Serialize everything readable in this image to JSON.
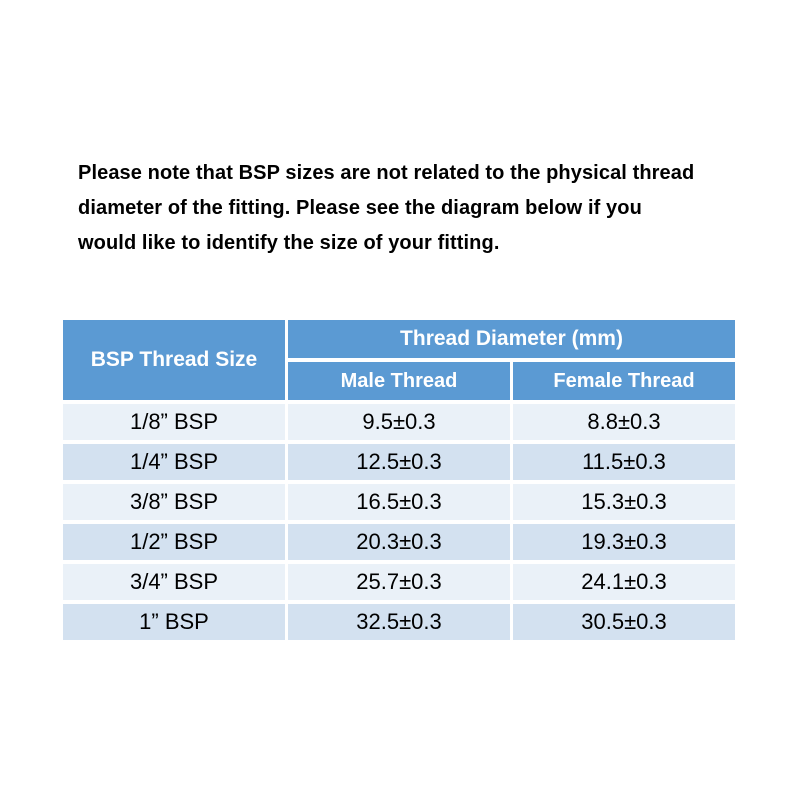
{
  "intro": {
    "lines": [
      "Please note that BSP sizes are not related to the physical thread",
      "diameter of the fitting. Please see the diagram below if you",
      "would like to identify the size of your fitting."
    ]
  },
  "table": {
    "size_column_header": "BSP Thread Size",
    "group_header": "Thread Diameter (mm)",
    "sub_headers": {
      "male": "Male Thread",
      "female": "Female Thread"
    },
    "rows": [
      {
        "size": "1/8” BSP",
        "male": "9.5±0.3",
        "female": "8.8±0.3"
      },
      {
        "size": "1/4” BSP",
        "male": "12.5±0.3",
        "female": "11.5±0.3"
      },
      {
        "size": "3/8” BSP",
        "male": "16.5±0.3",
        "female": "15.3±0.3"
      },
      {
        "size": "1/2” BSP",
        "male": "20.3±0.3",
        "female": "19.3±0.3"
      },
      {
        "size": "3/4” BSP",
        "male": "25.7±0.3",
        "female": "24.1±0.3"
      },
      {
        "size": "1” BSP",
        "male": "32.5±0.3",
        "female": "30.5±0.3"
      }
    ],
    "colors": {
      "header_bg": "#5B9AD3",
      "row_light": "#EAF1F8",
      "row_dark": "#D3E1F0",
      "header_text": "#FFFFFF",
      "body_text": "#000000"
    }
  }
}
